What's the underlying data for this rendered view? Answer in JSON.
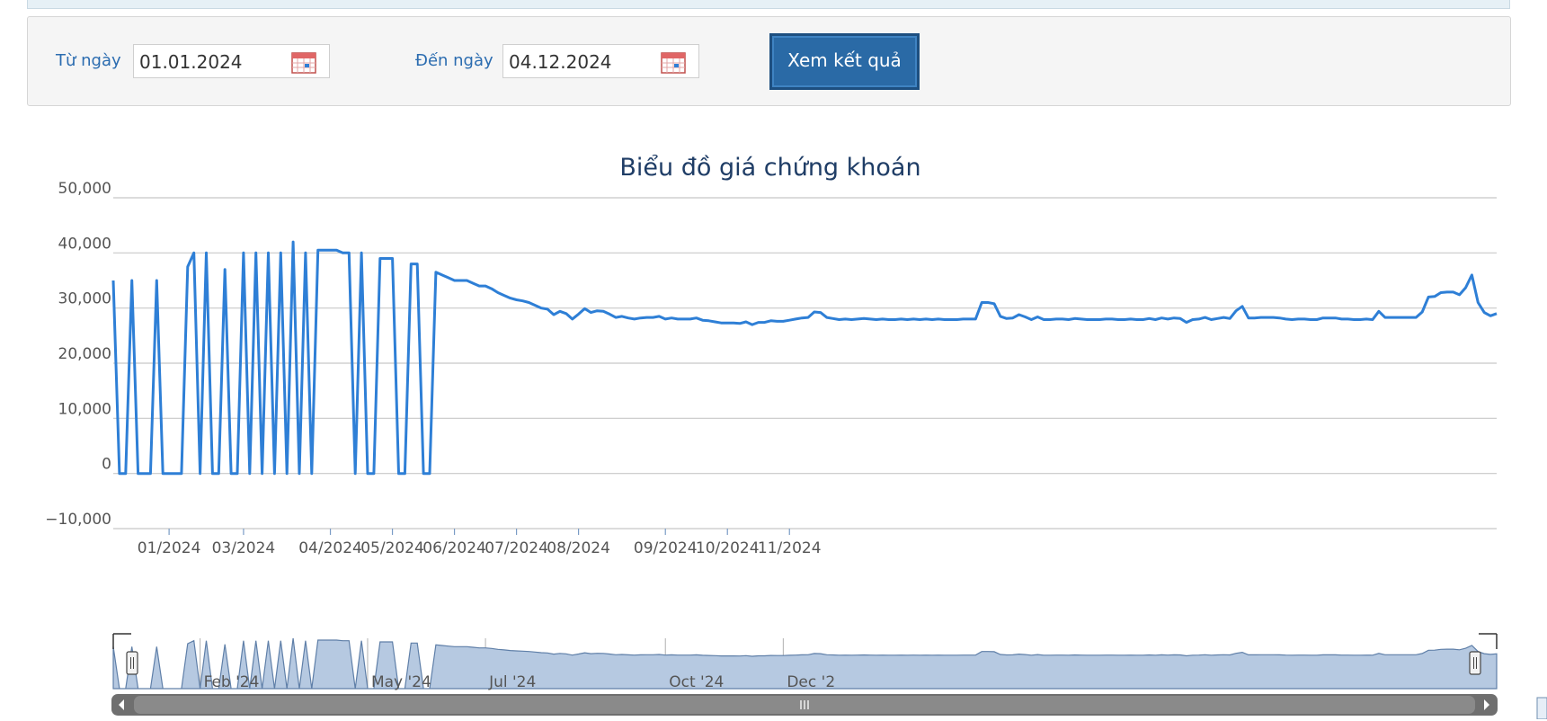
{
  "filter": {
    "from_label": "Từ ngày",
    "from_value": "01.01.2024",
    "to_label": "Đến ngày",
    "to_value": "04.12.2024",
    "submit_label": "Xem kết quả"
  },
  "colors": {
    "line": "#2e7fd6",
    "navigator_fill": "#b6c9e1",
    "navigator_line": "#5f7fa8",
    "grid": "#c8c8c8",
    "accent_button": "#2a6aa6",
    "label_blue": "#2b6cb0"
  },
  "chart_data": {
    "type": "line",
    "title": "Biểu đồ giá chứng khoán",
    "ylim": [
      -10000,
      50000
    ],
    "yticks": [
      "50,000",
      "40,000",
      "30,000",
      "20,000",
      "10,000",
      "0",
      "−10,000"
    ],
    "ytick_values": [
      50000,
      40000,
      30000,
      20000,
      10000,
      0,
      -10000
    ],
    "xtick_labels": [
      "01/2024",
      "03/2024",
      "04/2024",
      "05/2024",
      "06/2024",
      "07/2024",
      "08/2024",
      "09/2024",
      "10/2024",
      "11/2024"
    ],
    "xtick_indices": [
      9,
      21,
      35,
      45,
      55,
      65,
      75,
      89,
      99,
      109
    ],
    "navigator_labels": [
      "Feb '24",
      "May '24",
      "Jul '24",
      "Oct '24",
      "Dec '2"
    ],
    "navigator_indices": [
      14,
      41,
      60,
      89,
      108
    ],
    "series": [
      {
        "values": [
          35000,
          0,
          0,
          35000,
          0,
          0,
          0,
          35000,
          0,
          0,
          0,
          0,
          37500,
          40000,
          0,
          40000,
          0,
          0,
          37000,
          0,
          0,
          40000,
          0,
          40000,
          0,
          40000,
          0,
          40000,
          0,
          42000,
          0,
          40000,
          0,
          40500,
          40500,
          40500,
          40500,
          40000,
          40000,
          0,
          40000,
          0,
          0,
          39000,
          39000,
          39000,
          0,
          0,
          38000,
          38000,
          0,
          0,
          36500,
          36000,
          35500,
          35000,
          35000,
          35000,
          34500,
          34000,
          34000,
          33500,
          32800,
          32300,
          31800,
          31500,
          31300,
          31000,
          30500,
          30000,
          29800,
          28800,
          29400,
          29000,
          28000,
          28900,
          29900,
          29200,
          29500,
          29400,
          28900,
          28300,
          28500,
          28200,
          28000,
          28200,
          28300,
          28300,
          28500,
          28000,
          28200,
          28000,
          28000,
          28000,
          28200,
          27800,
          27700,
          27500,
          27300,
          27300,
          27300,
          27200,
          27500,
          27000,
          27400,
          27400,
          27700,
          27600,
          27600,
          27800,
          28000,
          28200,
          28300,
          29300,
          29200,
          28300,
          28100,
          27900,
          28000,
          27900,
          28000,
          28100,
          28000,
          27900,
          28000,
          27900,
          27900,
          28000,
          27900,
          28000,
          27900,
          28000,
          27900,
          28000,
          27900,
          27900,
          27900,
          28000,
          28000,
          28000,
          31000,
          31000,
          30800,
          28500,
          28100,
          28200,
          28800,
          28400,
          27900,
          28400,
          27900,
          27900,
          28000,
          28000,
          27900,
          28100,
          28000,
          27900,
          27900,
          27900,
          28000,
          28000,
          27900,
          27900,
          28000,
          27900,
          27900,
          28100,
          27900,
          28200,
          28000,
          28200,
          28100,
          27400,
          27900,
          28000,
          28300,
          27900,
          28100,
          28300,
          28100,
          29500,
          30300,
          28200,
          28200,
          28300,
          28300,
          28300,
          28200,
          28000,
          27900,
          28000,
          28000,
          27900,
          27900,
          28200,
          28200,
          28200,
          28000,
          28000,
          27900,
          27900,
          28000,
          27900,
          29400,
          28300,
          28300,
          28300,
          28300,
          28300,
          28300,
          29300,
          32000,
          32100,
          32800,
          32900,
          32900,
          32400,
          33700,
          36000,
          31000,
          29200,
          28600,
          29000
        ]
      }
    ]
  }
}
